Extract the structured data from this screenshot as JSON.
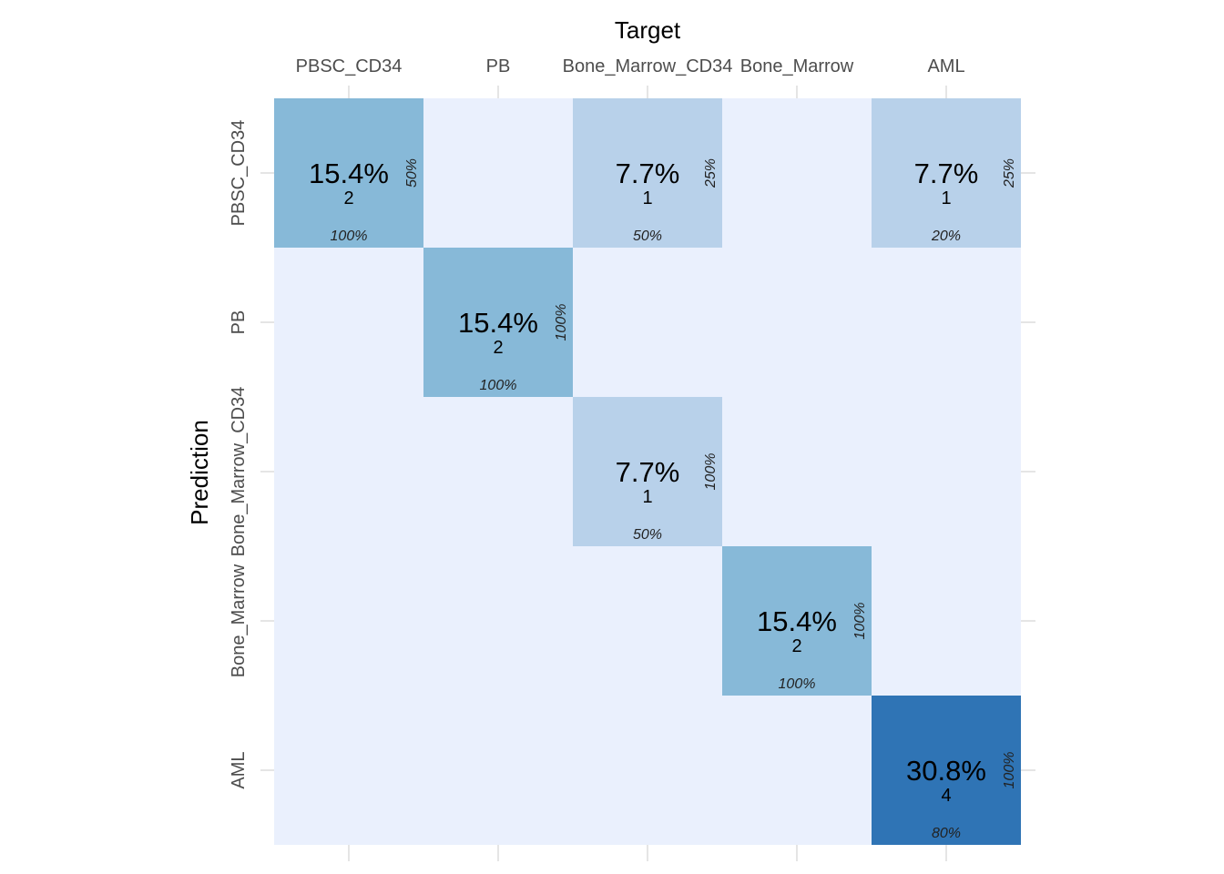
{
  "chart_data": {
    "type": "heatmap",
    "title": "",
    "xlabel": "Target",
    "ylabel": "Prediction",
    "x_categories": [
      "PBSC_CD34",
      "PB",
      "Bone_Marrow_CD34",
      "Bone_Marrow",
      "AML"
    ],
    "y_categories": [
      "PBSC_CD34",
      "PB",
      "Bone_Marrow_CD34",
      "Bone_Marrow",
      "AML"
    ],
    "cells": [
      {
        "target": "PBSC_CD34",
        "prediction": "PBSC_CD34",
        "count": 2,
        "percent": "15.4%",
        "row_percent": "50%",
        "col_percent": "100%"
      },
      {
        "target": "Bone_Marrow_CD34",
        "prediction": "PBSC_CD34",
        "count": 1,
        "percent": "7.7%",
        "row_percent": "25%",
        "col_percent": "50%"
      },
      {
        "target": "AML",
        "prediction": "PBSC_CD34",
        "count": 1,
        "percent": "7.7%",
        "row_percent": "25%",
        "col_percent": "20%"
      },
      {
        "target": "PB",
        "prediction": "PB",
        "count": 2,
        "percent": "15.4%",
        "row_percent": "100%",
        "col_percent": "100%"
      },
      {
        "target": "Bone_Marrow_CD34",
        "prediction": "Bone_Marrow_CD34",
        "count": 1,
        "percent": "7.7%",
        "row_percent": "100%",
        "col_percent": "50%"
      },
      {
        "target": "Bone_Marrow",
        "prediction": "Bone_Marrow",
        "count": 2,
        "percent": "15.4%",
        "row_percent": "100%",
        "col_percent": "100%"
      },
      {
        "target": "AML",
        "prediction": "AML",
        "count": 4,
        "percent": "30.8%",
        "row_percent": "100%",
        "col_percent": "80%"
      }
    ],
    "colors": {
      "empty": "#eaf0fd",
      "count_1": "#b8d1ea",
      "count_2": "#87b9d8",
      "count_4": "#2f74b5",
      "grid": "#e5e5e5",
      "tick_label": "#4d4d4d"
    },
    "grid": true
  }
}
